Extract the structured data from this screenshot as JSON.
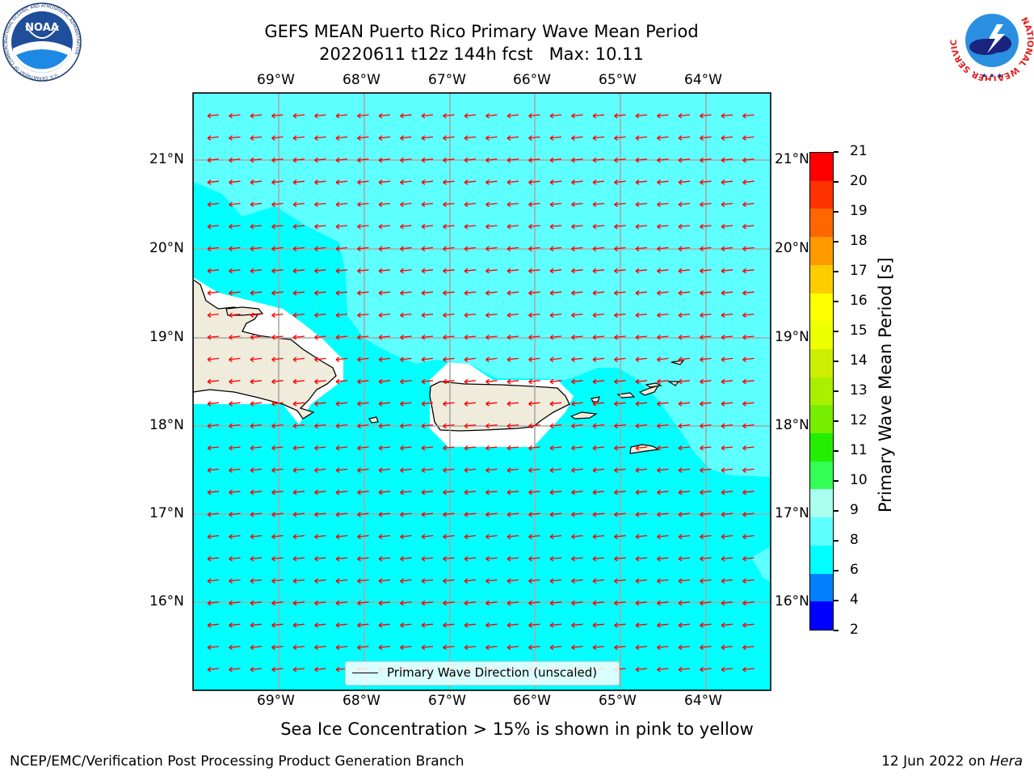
{
  "title": {
    "line1": "GEFS MEAN Puerto Rico Primary Wave Mean Period",
    "line2": "20220611 t12z 144h fcst   Max: 10.11"
  },
  "map": {
    "lon_labels": [
      "69°W",
      "68°W",
      "67°W",
      "66°W",
      "65°W",
      "64°W"
    ],
    "lat_labels": [
      "21°N",
      "20°N",
      "19°N",
      "18°N",
      "17°N",
      "16°N"
    ],
    "lon_range": [
      -70.0,
      -63.25
    ],
    "lat_range": [
      15.05,
      21.75
    ],
    "wave_direction": "toward west (from east)",
    "legend": "Primary Wave Direction (unscaled)",
    "land_color": "#efecdc",
    "ocean_color_short": "#00ffff",
    "ocean_color_long": "#5effff",
    "arrow_color": "#ff0000"
  },
  "colorbar": {
    "label": "Primary Wave Mean Period [s]",
    "ticks": [
      "2",
      "4",
      "6",
      "8",
      "9",
      "10",
      "11",
      "12",
      "13",
      "14",
      "15",
      "16",
      "17",
      "18",
      "19",
      "20",
      "21"
    ],
    "colors": [
      "#0000ff",
      "#0080ff",
      "#00ffff",
      "#5effff",
      "#aaffee",
      "#33ff55",
      "#22ee00",
      "#77ee00",
      "#aaee00",
      "#ccee00",
      "#eeff00",
      "#ffff00",
      "#ffcc00",
      "#ff9900",
      "#ff6600",
      "#ff3300",
      "#ff0000"
    ]
  },
  "sea_ice_note": "Sea Ice Concentration > 15% is shown in pink to yellow",
  "footer": {
    "left": "NCEP/EMC/Verification Post Processing Product Generation Branch",
    "right_prefix": "12 Jun 2022 on ",
    "right_host": "Hera"
  },
  "logos": {
    "noaa": "NOAA",
    "noaa_ring_top": "NATIONAL OCEANIC AND ATMOSPHERIC ADMINISTRATION",
    "noaa_ring_bottom": "U.S. DEPARTMENT OF COMMERCE",
    "nws_ring": "NATIONAL WEATHER SERVICE"
  }
}
